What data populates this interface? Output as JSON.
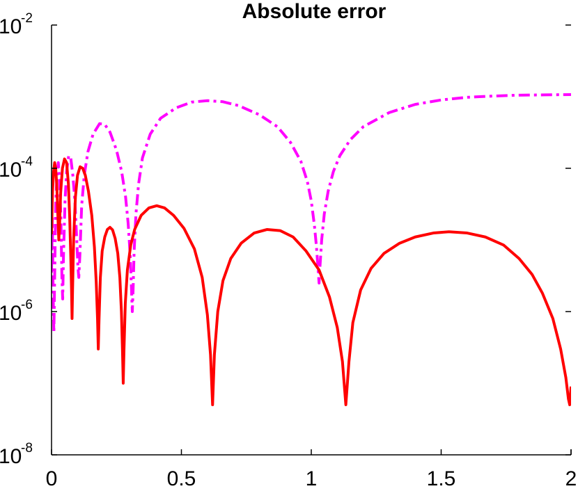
{
  "chart_data": {
    "type": "line",
    "title": "Absolute error",
    "xlabel": "",
    "ylabel": "",
    "xlim": [
      0,
      2
    ],
    "ylim": [
      1e-08,
      0.01
    ],
    "yscale": "log",
    "grid": false,
    "xticks": [
      {
        "value": 0,
        "label": "0"
      },
      {
        "value": 0.5,
        "label": "0.5"
      },
      {
        "value": 1,
        "label": "1"
      },
      {
        "value": 1.5,
        "label": "1.5"
      },
      {
        "value": 2,
        "label": "2"
      }
    ],
    "yticks": [
      {
        "value": 1e-08,
        "base": "10",
        "exp": "-8"
      },
      {
        "value": 1e-06,
        "base": "10",
        "exp": "-6"
      },
      {
        "value": 0.0001,
        "base": "10",
        "exp": "-4"
      },
      {
        "value": 0.01,
        "base": "10",
        "exp": "-2"
      }
    ],
    "series": [
      {
        "color": "#ff00ff",
        "style": "dashdot",
        "points": [
          [
            0.0,
            3.5e-06
          ],
          [
            0.003,
            2e-05
          ],
          [
            0.006,
            2e-06
          ],
          [
            0.009,
            5e-07
          ],
          [
            0.012,
            3e-06
          ],
          [
            0.016,
            3e-05
          ],
          [
            0.02,
            7e-05
          ],
          [
            0.026,
            0.00012
          ],
          [
            0.031,
            7e-05
          ],
          [
            0.036,
            2e-05
          ],
          [
            0.04,
            3e-06
          ],
          [
            0.043,
            1.5e-06
          ],
          [
            0.046,
            6e-06
          ],
          [
            0.052,
            3.5e-05
          ],
          [
            0.058,
            9e-05
          ],
          [
            0.066,
            0.00015
          ],
          [
            0.074,
            0.00014
          ],
          [
            0.082,
            8e-05
          ],
          [
            0.09,
            3.5e-05
          ],
          [
            0.097,
            1e-05
          ],
          [
            0.102,
            4e-06
          ],
          [
            0.105,
            3e-06
          ],
          [
            0.109,
            6e-06
          ],
          [
            0.116,
            3e-05
          ],
          [
            0.126,
            8e-05
          ],
          [
            0.14,
            0.00017
          ],
          [
            0.16,
            0.0003
          ],
          [
            0.185,
            0.00042
          ],
          [
            0.205,
            0.00041
          ],
          [
            0.225,
            0.00032
          ],
          [
            0.25,
            0.00018
          ],
          [
            0.27,
            9e-05
          ],
          [
            0.285,
            4e-05
          ],
          [
            0.295,
            1.7e-05
          ],
          [
            0.303,
            6e-06
          ],
          [
            0.308,
            2e-06
          ],
          [
            0.311,
            1e-06
          ],
          [
            0.314,
            2e-06
          ],
          [
            0.318,
            7e-06
          ],
          [
            0.325,
            2.3e-05
          ],
          [
            0.335,
            6e-05
          ],
          [
            0.35,
            0.00014
          ],
          [
            0.38,
            0.0003
          ],
          [
            0.42,
            0.0005
          ],
          [
            0.48,
            0.0007
          ],
          [
            0.54,
            0.00084
          ],
          [
            0.6,
            0.00088
          ],
          [
            0.66,
            0.00085
          ],
          [
            0.72,
            0.00075
          ],
          [
            0.8,
            0.00056
          ],
          [
            0.87,
            0.00038
          ],
          [
            0.92,
            0.00023
          ],
          [
            0.96,
            0.000125
          ],
          [
            0.985,
            6.5e-05
          ],
          [
            1.0,
            3.5e-05
          ],
          [
            1.012,
            1.6e-05
          ],
          [
            1.02,
            8e-06
          ],
          [
            1.026,
            4e-06
          ],
          [
            1.03,
            2.5e-06
          ],
          [
            1.033,
            4e-06
          ],
          [
            1.04,
            1e-05
          ],
          [
            1.05,
            2.3e-05
          ],
          [
            1.065,
            4.8e-05
          ],
          [
            1.085,
            9e-05
          ],
          [
            1.11,
            0.00015
          ],
          [
            1.15,
            0.00025
          ],
          [
            1.2,
            0.00038
          ],
          [
            1.3,
            0.0006
          ],
          [
            1.4,
            0.00078
          ],
          [
            1.5,
            0.0009
          ],
          [
            1.6,
            0.00098
          ],
          [
            1.7,
            0.00102
          ],
          [
            1.8,
            0.00105
          ],
          [
            1.9,
            0.00106
          ],
          [
            2.0,
            0.00107
          ]
        ]
      },
      {
        "color": "#ff0000",
        "style": "solid",
        "points": [
          [
            0.0,
            1.2e-05
          ],
          [
            0.004,
            5e-05
          ],
          [
            0.008,
            9e-05
          ],
          [
            0.012,
            0.00012
          ],
          [
            0.016,
            0.0001
          ],
          [
            0.02,
            6e-05
          ],
          [
            0.023,
            3e-05
          ],
          [
            0.026,
            1.5e-05
          ],
          [
            0.028,
            1e-05
          ],
          [
            0.031,
            1.6e-05
          ],
          [
            0.035,
            4.5e-05
          ],
          [
            0.042,
            0.0001
          ],
          [
            0.05,
            0.000135
          ],
          [
            0.058,
            0.00012
          ],
          [
            0.065,
            6e-05
          ],
          [
            0.07,
            2e-05
          ],
          [
            0.074,
            6e-06
          ],
          [
            0.077,
            2e-06
          ],
          [
            0.079,
            8e-07
          ],
          [
            0.081,
            2e-06
          ],
          [
            0.085,
            1e-05
          ],
          [
            0.092,
            4e-05
          ],
          [
            0.1,
            8e-05
          ],
          [
            0.11,
            0.000105
          ],
          [
            0.12,
            0.0001
          ],
          [
            0.13,
            8e-05
          ],
          [
            0.142,
            4.8e-05
          ],
          [
            0.155,
            2.2e-05
          ],
          [
            0.165,
            8e-06
          ],
          [
            0.172,
            2.6e-06
          ],
          [
            0.177,
            8e-07
          ],
          [
            0.18,
            3e-07
          ],
          [
            0.183,
            8e-07
          ],
          [
            0.188,
            3e-06
          ],
          [
            0.195,
            7e-06
          ],
          [
            0.205,
            1.1e-05
          ],
          [
            0.215,
            1.4e-05
          ],
          [
            0.225,
            1.5e-05
          ],
          [
            0.235,
            1.38e-05
          ],
          [
            0.245,
            1.05e-05
          ],
          [
            0.255,
            6.5e-06
          ],
          [
            0.263,
            3e-06
          ],
          [
            0.269,
            1e-06
          ],
          [
            0.273,
            3e-07
          ],
          [
            0.276,
            1e-07
          ],
          [
            0.279,
            3e-07
          ],
          [
            0.284,
            1.3e-06
          ],
          [
            0.292,
            3.8e-06
          ],
          [
            0.305,
            8.5e-06
          ],
          [
            0.32,
            1.4e-05
          ],
          [
            0.345,
            2.2e-05
          ],
          [
            0.375,
            2.8e-05
          ],
          [
            0.405,
            3e-05
          ],
          [
            0.435,
            2.8e-05
          ],
          [
            0.47,
            2.2e-05
          ],
          [
            0.51,
            1.45e-05
          ],
          [
            0.55,
            7.5e-06
          ],
          [
            0.58,
            3e-06
          ],
          [
            0.6,
            9e-07
          ],
          [
            0.612,
            2.5e-07
          ],
          [
            0.62,
            5e-08
          ],
          [
            0.627,
            2.5e-07
          ],
          [
            0.64,
            1e-06
          ],
          [
            0.66,
            2.7e-06
          ],
          [
            0.69,
            5.5e-06
          ],
          [
            0.73,
            9e-06
          ],
          [
            0.78,
            1.25e-05
          ],
          [
            0.83,
            1.4e-05
          ],
          [
            0.88,
            1.35e-05
          ],
          [
            0.93,
            1.1e-05
          ],
          [
            0.98,
            7e-06
          ],
          [
            1.03,
            3.8e-06
          ],
          [
            1.07,
            1.6e-06
          ],
          [
            1.1,
            6e-07
          ],
          [
            1.12,
            2e-07
          ],
          [
            1.133,
            5e-08
          ],
          [
            1.145,
            2e-07
          ],
          [
            1.16,
            7e-07
          ],
          [
            1.19,
            2e-06
          ],
          [
            1.23,
            4e-06
          ],
          [
            1.28,
            6.5e-06
          ],
          [
            1.34,
            9e-06
          ],
          [
            1.4,
            1.1e-05
          ],
          [
            1.47,
            1.25e-05
          ],
          [
            1.53,
            1.3e-05
          ],
          [
            1.6,
            1.25e-05
          ],
          [
            1.67,
            1.1e-05
          ],
          [
            1.74,
            8.5e-06
          ],
          [
            1.8,
            5.5e-06
          ],
          [
            1.85,
            3.3e-06
          ],
          [
            1.89,
            1.8e-06
          ],
          [
            1.93,
            8e-07
          ],
          [
            1.96,
            3e-07
          ],
          [
            1.98,
            1.2e-07
          ],
          [
            1.99,
            6e-08
          ],
          [
            1.995,
            5e-08
          ],
          [
            2.0,
            9e-08
          ]
        ]
      }
    ]
  }
}
